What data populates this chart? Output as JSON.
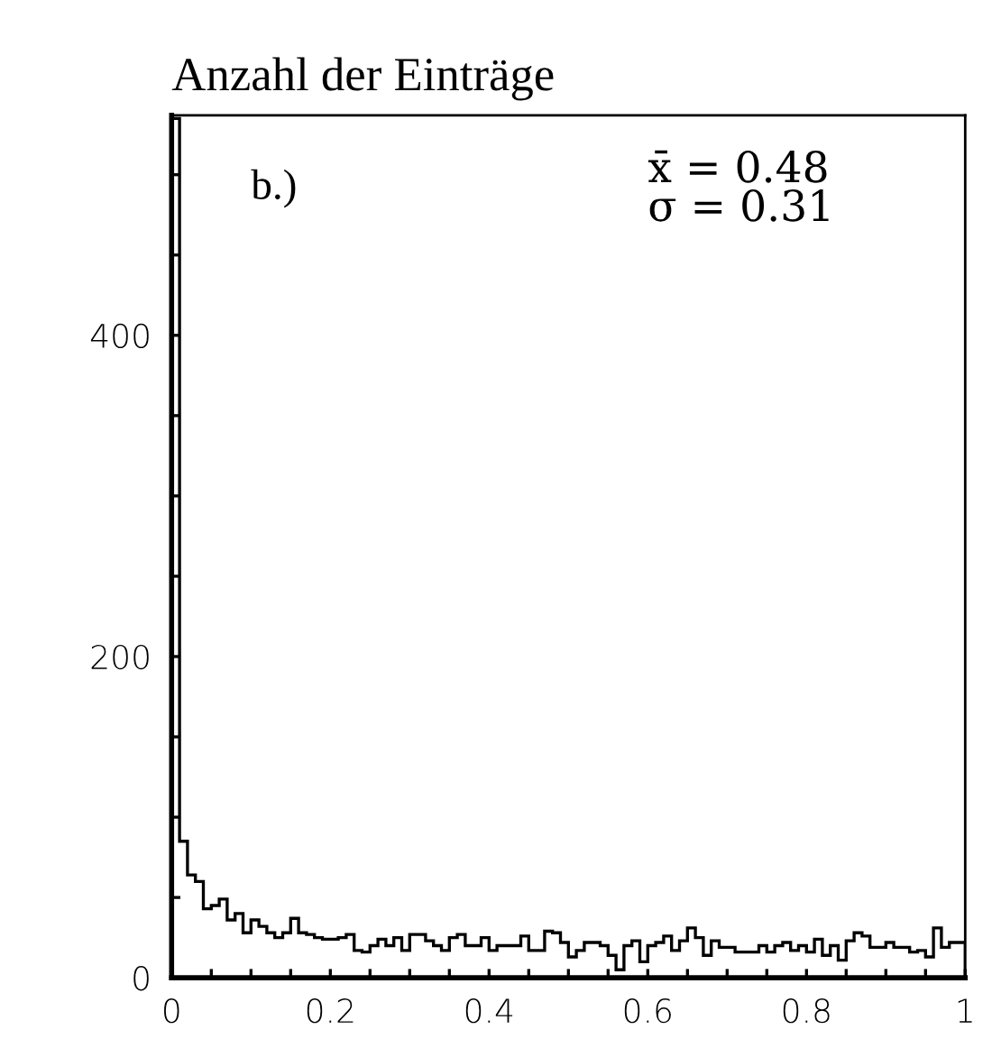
{
  "chart_data": {
    "type": "histogram",
    "title": "Anzahl der Einträge",
    "annotations": [
      "b.)",
      "x̄ = 0.48",
      "σ = 0.31"
    ],
    "bins": [
      0,
      0.01,
      0.02,
      0.03,
      0.04,
      0.05,
      0.06,
      0.07,
      0.08,
      0.09,
      0.1,
      0.11,
      0.12,
      0.13,
      0.14,
      0.15,
      0.16,
      0.17,
      0.18,
      0.19,
      0.2,
      0.21,
      0.22,
      0.23,
      0.24,
      0.25,
      0.26,
      0.27,
      0.28,
      0.29,
      0.3,
      0.31,
      0.32,
      0.33,
      0.34,
      0.35,
      0.36,
      0.37,
      0.38,
      0.39,
      0.4,
      0.41,
      0.42,
      0.43,
      0.44,
      0.45,
      0.46,
      0.47,
      0.48,
      0.49,
      0.5,
      0.51,
      0.52,
      0.53,
      0.54,
      0.55,
      0.56,
      0.57,
      0.58,
      0.59,
      0.6,
      0.61,
      0.62,
      0.63,
      0.64,
      0.65,
      0.66,
      0.67,
      0.68,
      0.69,
      0.7,
      0.71,
      0.72,
      0.73,
      0.74,
      0.75,
      0.76,
      0.77,
      0.78,
      0.79,
      0.8,
      0.81,
      0.82,
      0.83,
      0.84,
      0.85,
      0.86,
      0.87,
      0.88,
      0.89,
      0.9,
      0.91,
      0.92,
      0.93,
      0.94,
      0.95,
      0.96,
      0.97,
      0.98,
      0.99,
      1
    ],
    "values": [
      535,
      85,
      64,
      60,
      43,
      45,
      49,
      36,
      40,
      28,
      36,
      32,
      28,
      25,
      28,
      37,
      28,
      27,
      25,
      24,
      24,
      25,
      27,
      17,
      16,
      20,
      24,
      20,
      25,
      17,
      27,
      27,
      23,
      20,
      17,
      25,
      27,
      20,
      20,
      25,
      17,
      20,
      20,
      20,
      26,
      17,
      17,
      29,
      28,
      22,
      13,
      17,
      22,
      22,
      20,
      14,
      5,
      20,
      23,
      10,
      20,
      22,
      26,
      17,
      23,
      31,
      25,
      14,
      23,
      19,
      19,
      16,
      16,
      16,
      20,
      16,
      20,
      22,
      17,
      20,
      16,
      24,
      14,
      20,
      11,
      23,
      28,
      26,
      19,
      19,
      22,
      19,
      19,
      16,
      17,
      13,
      31,
      19,
      22,
      22
    ],
    "color": "#000000",
    "xlim": [
      0,
      1
    ],
    "ylim": [
      0,
      537
    ],
    "xticks": [
      0,
      {
        "value": 0.05,
        "label": null
      },
      {
        "value": 0.1,
        "label": null
      },
      {
        "value": 0.15,
        "label": null
      },
      0.2,
      {
        "value": 0.25,
        "label": null
      },
      {
        "value": 0.3,
        "label": null
      },
      {
        "value": 0.35,
        "label": null
      },
      0.4,
      {
        "value": 0.45,
        "label": null
      },
      {
        "value": 0.5,
        "label": null
      },
      {
        "value": 0.55,
        "label": null
      },
      0.6,
      {
        "value": 0.65,
        "label": null
      },
      {
        "value": 0.7,
        "label": null
      },
      {
        "value": 0.75,
        "label": null
      },
      0.8,
      {
        "value": 0.85,
        "label": null
      },
      {
        "value": 0.9,
        "label": null
      },
      {
        "value": 0.95,
        "label": null
      },
      1
    ],
    "yticks": [
      0,
      {
        "value": 50,
        "label": null
      },
      {
        "value": 100,
        "label": null
      },
      {
        "value": 150,
        "label": null
      },
      200,
      {
        "value": 250,
        "label": null
      },
      {
        "value": 300,
        "label": null
      },
      {
        "value": 350,
        "label": null
      },
      400,
      {
        "value": 450,
        "label": null
      },
      {
        "value": 500,
        "label": null
      }
    ],
    "grid": false,
    "legend": false
  }
}
